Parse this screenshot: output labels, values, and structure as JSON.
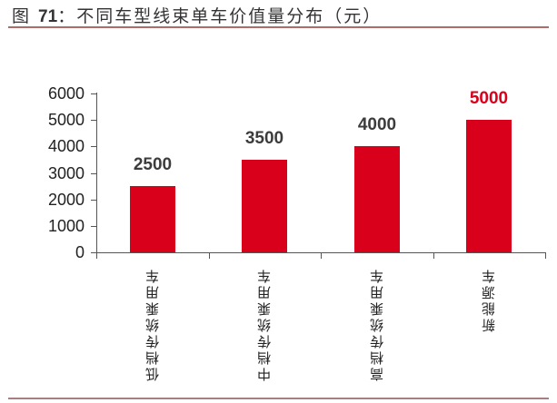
{
  "header": {
    "fig_prefix": "图 ",
    "fig_number": "71",
    "fig_title": "：不同车型线束单车价值量分布（元）"
  },
  "colors": {
    "bar": "#d9001b",
    "highlight_label": "#d9001b",
    "label": "#3c3c3c",
    "rule": "#b06a68"
  },
  "axis": {
    "y_ticks": [
      "0",
      "1000",
      "2000",
      "3000",
      "4000",
      "5000",
      "6000"
    ]
  },
  "chart_data": {
    "type": "bar",
    "title": "图71：不同车型线束单车价值量分布（元）",
    "categories": [
      "低档传统乘用车",
      "中档传统乘用车",
      "高档传统乘用车",
      "新能源车"
    ],
    "values": [
      2500,
      3500,
      4000,
      5000
    ],
    "value_labels": [
      "2500",
      "3500",
      "4000",
      "5000"
    ],
    "highlighted_index": 3,
    "xlabel": "",
    "ylabel": "",
    "ylim": [
      0,
      6000
    ],
    "y_tick_step": 1000,
    "grid": false,
    "legend": "none",
    "x_label_orientation": "vertical"
  }
}
